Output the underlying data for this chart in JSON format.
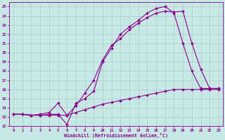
{
  "xlabel": "Windchill (Refroidissement éolien,°C)",
  "bg_color": "#c8e8e8",
  "line_color": "#8b008b",
  "grid_color": "#aacaca",
  "xlim_min": -0.5,
  "xlim_max": 23.5,
  "ylim_min": 12,
  "ylim_max": 25.5,
  "xticks": [
    0,
    1,
    2,
    3,
    4,
    5,
    6,
    7,
    8,
    9,
    10,
    11,
    12,
    13,
    14,
    15,
    16,
    17,
    18,
    19,
    20,
    21,
    22,
    23
  ],
  "yticks": [
    12,
    13,
    14,
    15,
    16,
    17,
    18,
    19,
    20,
    21,
    22,
    23,
    24,
    25
  ],
  "line1_x": [
    0,
    1,
    2,
    3,
    4,
    5,
    6,
    7,
    8,
    9,
    10,
    11,
    12,
    13,
    14,
    15,
    16,
    17,
    18,
    19,
    20,
    21,
    22,
    23
  ],
  "line1_y": [
    13.3,
    13.3,
    13.2,
    13.2,
    13.2,
    13.2,
    13.2,
    13.5,
    13.8,
    14.1,
    14.4,
    14.6,
    14.8,
    15.0,
    15.2,
    15.4,
    15.6,
    15.8,
    16.0,
    16.0,
    16.0,
    16.0,
    16.0,
    16.0
  ],
  "line2_x": [
    0,
    1,
    2,
    3,
    4,
    5,
    6,
    7,
    8,
    9,
    10,
    11,
    12,
    13,
    14,
    15,
    16,
    17,
    18,
    19,
    20,
    21,
    22,
    23
  ],
  "line2_y": [
    13.3,
    13.3,
    13.2,
    13.2,
    13.3,
    13.3,
    12.2,
    14.5,
    15.0,
    15.8,
    19.0,
    20.5,
    22.0,
    22.8,
    23.5,
    24.3,
    24.8,
    25.0,
    24.3,
    21.0,
    18.0,
    16.1,
    16.1,
    16.1
  ],
  "line3_x": [
    0,
    1,
    2,
    3,
    4,
    5,
    6,
    7,
    8,
    9,
    10,
    11,
    12,
    13,
    14,
    15,
    16,
    17,
    18,
    19,
    20,
    21,
    22,
    23
  ],
  "line3_y": [
    13.3,
    13.3,
    13.2,
    13.3,
    13.5,
    14.5,
    13.2,
    14.2,
    15.6,
    17.0,
    19.2,
    20.8,
    21.5,
    22.5,
    23.2,
    23.8,
    24.3,
    24.5,
    24.4,
    24.5,
    21.0,
    18.2,
    16.1,
    16.1
  ]
}
